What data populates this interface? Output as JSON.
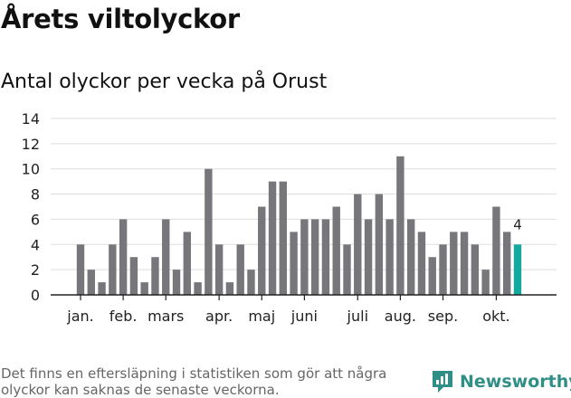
{
  "header": {
    "title": "Årets viltolyckor",
    "subtitle": "Antal olyckor per vecka på Orust"
  },
  "footer": {
    "note": "Det finns en eftersläpning i statistiken som gör att några olyckor kan saknas de senaste veckorna.",
    "brand": "Newsworthy"
  },
  "colors": {
    "bar": "#77767b",
    "highlight": "#15a89e",
    "grid": "#dddddd",
    "axis": "#222222",
    "brand": "#2f8f86"
  },
  "chart_data": {
    "type": "bar",
    "title": "Årets viltolyckor",
    "subtitle": "Antal olyckor per vecka på Orust",
    "xlabel": "",
    "ylabel": "",
    "ylim": [
      0,
      14
    ],
    "yticks": [
      0,
      2,
      4,
      6,
      8,
      10,
      12,
      14
    ],
    "grid": true,
    "weeks": [
      1,
      2,
      3,
      4,
      5,
      6,
      7,
      8,
      9,
      10,
      11,
      12,
      13,
      14,
      15,
      16,
      17,
      18,
      19,
      20,
      21,
      22,
      23,
      24,
      25,
      26,
      27,
      28,
      29,
      30,
      31,
      32,
      33,
      34,
      35,
      36,
      37,
      38,
      39,
      40,
      41,
      42
    ],
    "values": [
      4,
      2,
      1,
      4,
      6,
      3,
      1,
      3,
      6,
      2,
      5,
      1,
      10,
      4,
      1,
      4,
      2,
      7,
      9,
      9,
      5,
      6,
      6,
      6,
      7,
      4,
      8,
      6,
      8,
      6,
      11,
      6,
      5,
      3,
      4,
      5,
      5,
      4,
      2,
      7,
      5,
      4
    ],
    "highlight_last": true,
    "last_value_label": "4",
    "month_labels": [
      {
        "label": "jan.",
        "at_week": 1
      },
      {
        "label": "feb.",
        "at_week": 5
      },
      {
        "label": "mars",
        "at_week": 9
      },
      {
        "label": "apr.",
        "at_week": 14
      },
      {
        "label": "maj",
        "at_week": 18
      },
      {
        "label": "juni",
        "at_week": 22
      },
      {
        "label": "juli",
        "at_week": 27
      },
      {
        "label": "aug.",
        "at_week": 31
      },
      {
        "label": "sep.",
        "at_week": 35
      },
      {
        "label": "okt.",
        "at_week": 40
      }
    ]
  }
}
